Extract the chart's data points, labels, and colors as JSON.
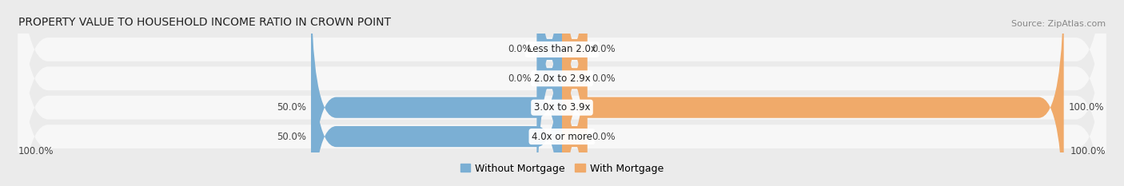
{
  "title": "PROPERTY VALUE TO HOUSEHOLD INCOME RATIO IN CROWN POINT",
  "source": "Source: ZipAtlas.com",
  "categories": [
    "Less than 2.0x",
    "2.0x to 2.9x",
    "3.0x to 3.9x",
    "4.0x or more"
  ],
  "without_mortgage": [
    0.0,
    0.0,
    50.0,
    50.0
  ],
  "with_mortgage": [
    0.0,
    0.0,
    100.0,
    0.0
  ],
  "without_mortgage_color": "#7bafd4",
  "with_mortgage_color": "#f0aa6a",
  "background_color": "#ebebeb",
  "row_bg_color": "#f7f7f7",
  "title_fontsize": 10,
  "source_fontsize": 8,
  "label_fontsize": 8.5,
  "legend_fontsize": 9,
  "max_value": 100.0,
  "min_bar_display": 5.0,
  "axis_label_left": "100.0%",
  "axis_label_right": "100.0%"
}
